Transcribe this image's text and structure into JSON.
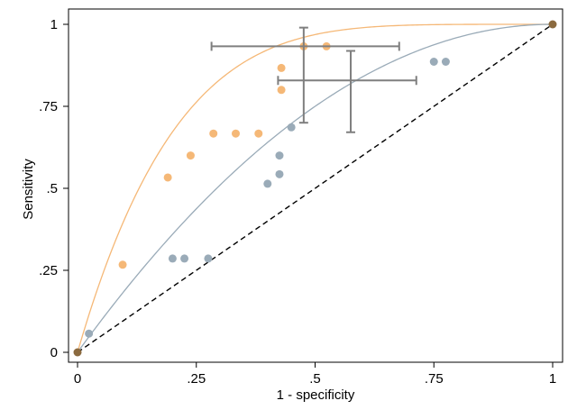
{
  "chart_data": {
    "type": "scatter",
    "title": "",
    "xlabel": "1 - specificity",
    "ylabel": "Sensitivity",
    "xlim": [
      0,
      1
    ],
    "ylim": [
      0,
      1
    ],
    "xticks": [
      0,
      0.25,
      0.5,
      0.75,
      1
    ],
    "xtick_labels": [
      "0",
      ".25",
      ".5",
      ".75",
      "1"
    ],
    "yticks": [
      0,
      0.25,
      0.5,
      0.75,
      1
    ],
    "ytick_labels": [
      "0",
      ".25",
      ".5",
      ".75",
      "1"
    ],
    "grid": false,
    "legend": "none",
    "reference_line": {
      "x": [
        0,
        1
      ],
      "y": [
        0,
        1
      ],
      "style": "dashed",
      "color": "#000000"
    },
    "endpoints": {
      "x": [
        0,
        1
      ],
      "y": [
        0,
        1
      ],
      "color": "#8b6a3f"
    },
    "series": [
      {
        "color": "#f5b877",
        "points": [
          {
            "x": 0.095,
            "y": 0.267
          },
          {
            "x": 0.19,
            "y": 0.533
          },
          {
            "x": 0.238,
            "y": 0.6
          },
          {
            "x": 0.286,
            "y": 0.667
          },
          {
            "x": 0.333,
            "y": 0.667
          },
          {
            "x": 0.381,
            "y": 0.667
          },
          {
            "x": 0.429,
            "y": 0.8
          },
          {
            "x": 0.429,
            "y": 0.867
          },
          {
            "x": 0.476,
            "y": 0.933
          },
          {
            "x": 0.524,
            "y": 0.933
          }
        ],
        "curve_exponent": 0.2,
        "summary": {
          "x": 0.476,
          "y": 0.933,
          "x_ci": [
            0.282,
            0.677
          ],
          "y_ci": [
            0.7,
            0.99
          ]
        }
      },
      {
        "color": "#9aabb8",
        "points": [
          {
            "x": 0.024,
            "y": 0.057
          },
          {
            "x": 0.2,
            "y": 0.286
          },
          {
            "x": 0.225,
            "y": 0.286
          },
          {
            "x": 0.275,
            "y": 0.286
          },
          {
            "x": 0.4,
            "y": 0.514
          },
          {
            "x": 0.425,
            "y": 0.543
          },
          {
            "x": 0.425,
            "y": 0.6
          },
          {
            "x": 0.45,
            "y": 0.686
          },
          {
            "x": 0.75,
            "y": 0.886
          },
          {
            "x": 0.775,
            "y": 0.886
          }
        ],
        "curve_exponent": 0.5,
        "summary": {
          "x": 0.575,
          "y": 0.829,
          "x_ci": [
            0.422,
            0.713
          ],
          "y_ci": [
            0.671,
            0.919
          ]
        }
      }
    ],
    "colors": {
      "errorbar": "#7f7f7f",
      "axis": "#000000"
    }
  }
}
